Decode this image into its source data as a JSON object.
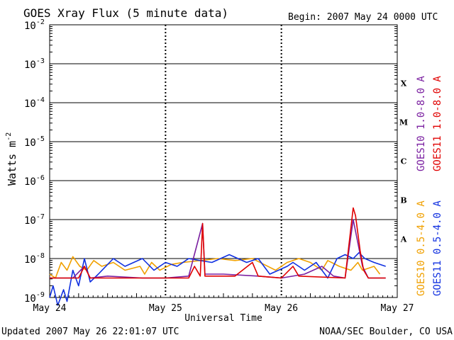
{
  "header": {
    "title": "GOES Xray Flux (5 minute data)",
    "begin": "Begin:  2007 May 24 0000 UTC"
  },
  "footer": {
    "updated": "Updated 2007 May 26 22:01:07 UTC",
    "credit": "NOAA/SEC Boulder, CO USA"
  },
  "colors": {
    "goes10_long": "#7a1fa0",
    "goes11_long": "#e00000",
    "goes10_short": "#f0a000",
    "goes11_short": "#1030e0"
  },
  "chart_data": {
    "type": "line",
    "title": "GOES Xray Flux (5 minute data)",
    "xlabel": "Universal Time",
    "ylabel_base": "Watts m",
    "ylabel_exp": "-2",
    "xlim_days": [
      0,
      3
    ],
    "x_ticks": [
      {
        "day": 0,
        "label": "May 24"
      },
      {
        "day": 1,
        "label": "May 25"
      },
      {
        "day": 2,
        "label": "May 26"
      },
      {
        "day": 3,
        "label": "May 27"
      }
    ],
    "y_log": true,
    "y_ticks": [
      {
        "exp": -2,
        "label": "10",
        "sup": "-2"
      },
      {
        "exp": -3,
        "label": "10",
        "sup": "-3"
      },
      {
        "exp": -4,
        "label": "10",
        "sup": "-4"
      },
      {
        "exp": -5,
        "label": "10",
        "sup": "-5"
      },
      {
        "exp": -6,
        "label": "10",
        "sup": "-6"
      },
      {
        "exp": -7,
        "label": "10",
        "sup": "-7"
      },
      {
        "exp": -8,
        "label": "10",
        "sup": "-8"
      },
      {
        "exp": -9,
        "label": "10",
        "sup": "-9"
      }
    ],
    "class_labels": [
      {
        "label": "X",
        "exp": -3.5
      },
      {
        "label": "M",
        "exp": -4.5
      },
      {
        "label": "C",
        "exp": -5.5
      },
      {
        "label": "B",
        "exp": -6.5
      },
      {
        "label": "A",
        "exp": -7.5
      }
    ],
    "legend": [
      {
        "name": "GOES10 1.0-8.0 A",
        "color": "#7a1fa0",
        "column": 0
      },
      {
        "name": "GOES11 1.0-8.0 A",
        "color": "#e00000",
        "column": 1
      },
      {
        "name": "GOES10 0.5-4.0 A",
        "color": "#f0a000",
        "column": 0
      },
      {
        "name": "GOES11 0.5-4.0 A",
        "color": "#1030e0",
        "column": 1
      }
    ],
    "series": [
      {
        "name": "GOES10 0.5-4.0 A",
        "color": "#f0a000",
        "points": [
          [
            0.0,
            -8.4
          ],
          [
            0.05,
            -8.5
          ],
          [
            0.1,
            -8.1
          ],
          [
            0.15,
            -8.3
          ],
          [
            0.2,
            -7.95
          ],
          [
            0.26,
            -8.2
          ],
          [
            0.32,
            -8.3
          ],
          [
            0.38,
            -8.05
          ],
          [
            0.45,
            -8.2
          ],
          [
            0.55,
            -8.1
          ],
          [
            0.65,
            -8.3
          ],
          [
            0.78,
            -8.2
          ],
          [
            0.82,
            -8.4
          ],
          [
            0.88,
            -8.1
          ],
          [
            0.95,
            -8.3
          ],
          [
            1.05,
            -8.15
          ],
          [
            1.15,
            -8.1
          ],
          [
            1.3,
            -8.05
          ],
          [
            1.45,
            -8.0
          ],
          [
            1.6,
            -8.05
          ],
          [
            1.75,
            -8.0
          ],
          [
            1.85,
            -8.15
          ],
          [
            1.95,
            -8.3
          ],
          [
            2.05,
            -8.1
          ],
          [
            2.15,
            -8.0
          ],
          [
            2.25,
            -8.1
          ],
          [
            2.35,
            -8.3
          ],
          [
            2.4,
            -8.05
          ],
          [
            2.5,
            -8.2
          ],
          [
            2.6,
            -8.3
          ],
          [
            2.66,
            -8.1
          ],
          [
            2.7,
            -8.3
          ],
          [
            2.8,
            -8.2
          ],
          [
            2.85,
            -8.4
          ]
        ]
      },
      {
        "name": "GOES11 0.5-4.0 A",
        "color": "#1030e0",
        "points": [
          [
            0.0,
            -9.0
          ],
          [
            0.03,
            -8.7
          ],
          [
            0.07,
            -9.2
          ],
          [
            0.12,
            -8.8
          ],
          [
            0.15,
            -9.1
          ],
          [
            0.2,
            -8.3
          ],
          [
            0.25,
            -8.7
          ],
          [
            0.3,
            -8.0
          ],
          [
            0.35,
            -8.6
          ],
          [
            0.42,
            -8.4
          ],
          [
            0.55,
            -8.0
          ],
          [
            0.65,
            -8.2
          ],
          [
            0.8,
            -8.0
          ],
          [
            0.9,
            -8.3
          ],
          [
            1.0,
            -8.1
          ],
          [
            1.1,
            -8.2
          ],
          [
            1.2,
            -8.0
          ],
          [
            1.3,
            -8.05
          ],
          [
            1.4,
            -8.1
          ],
          [
            1.55,
            -7.9
          ],
          [
            1.7,
            -8.1
          ],
          [
            1.8,
            -8.0
          ],
          [
            1.9,
            -8.4
          ],
          [
            2.05,
            -8.2
          ],
          [
            2.1,
            -8.1
          ],
          [
            2.2,
            -8.3
          ],
          [
            2.3,
            -8.1
          ],
          [
            2.4,
            -8.5
          ],
          [
            2.48,
            -8.0
          ],
          [
            2.55,
            -7.9
          ],
          [
            2.62,
            -8.0
          ],
          [
            2.67,
            -7.85
          ],
          [
            2.72,
            -8.0
          ],
          [
            2.8,
            -8.1
          ],
          [
            2.9,
            -8.2
          ]
        ]
      },
      {
        "name": "GOES10 1.0-8.0 A",
        "color": "#7a1fa0",
        "points": [
          [
            0.0,
            -8.5
          ],
          [
            0.2,
            -8.5
          ],
          [
            0.3,
            -8.2
          ],
          [
            0.35,
            -8.5
          ],
          [
            0.5,
            -8.45
          ],
          [
            0.8,
            -8.5
          ],
          [
            1.0,
            -8.5
          ],
          [
            1.2,
            -8.45
          ],
          [
            1.32,
            -7.1
          ],
          [
            1.34,
            -8.4
          ],
          [
            1.5,
            -8.4
          ],
          [
            1.8,
            -8.45
          ],
          [
            2.0,
            -8.5
          ],
          [
            2.2,
            -8.4
          ],
          [
            2.35,
            -8.2
          ],
          [
            2.45,
            -8.45
          ],
          [
            2.55,
            -8.5
          ],
          [
            2.62,
            -7.0
          ],
          [
            2.66,
            -7.6
          ],
          [
            2.7,
            -8.2
          ],
          [
            2.75,
            -8.5
          ],
          [
            2.9,
            -8.5
          ]
        ]
      },
      {
        "name": "GOES11 1.0-8.0 A",
        "color": "#e00000",
        "points": [
          [
            0.0,
            -8.5
          ],
          [
            0.25,
            -8.5
          ],
          [
            0.3,
            -8.2
          ],
          [
            0.35,
            -8.5
          ],
          [
            0.8,
            -8.5
          ],
          [
            1.2,
            -8.5
          ],
          [
            1.25,
            -8.2
          ],
          [
            1.3,
            -8.45
          ],
          [
            1.32,
            -7.1
          ],
          [
            1.34,
            -8.45
          ],
          [
            1.6,
            -8.45
          ],
          [
            1.75,
            -8.1
          ],
          [
            1.8,
            -8.45
          ],
          [
            2.0,
            -8.5
          ],
          [
            2.1,
            -8.2
          ],
          [
            2.15,
            -8.45
          ],
          [
            2.55,
            -8.5
          ],
          [
            2.62,
            -6.7
          ],
          [
            2.64,
            -6.9
          ],
          [
            2.68,
            -7.8
          ],
          [
            2.71,
            -8.3
          ],
          [
            2.75,
            -8.5
          ],
          [
            2.9,
            -8.5
          ]
        ]
      }
    ]
  }
}
